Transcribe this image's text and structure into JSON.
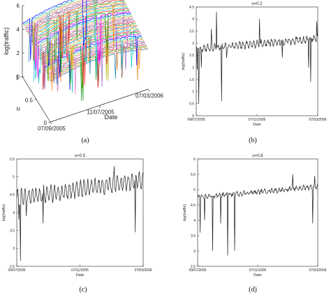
{
  "chart_data": [
    {
      "panel": "(a)",
      "type": "surface",
      "title": "",
      "xlabel": "Date",
      "ylabel": "u",
      "zlabel": "log(traffic)",
      "xticks": [
        "07/09/2005",
        "11/07/2005",
        "07/03/2006"
      ],
      "yticks": [
        "0",
        "0.5",
        "1"
      ],
      "zticks": [
        "0",
        "2",
        "4",
        "6"
      ],
      "zlim": [
        0,
        6
      ],
      "u_range": [
        0,
        1
      ],
      "description_note": "Many coloured quantile curves (one per u in [0,1]) plotted over date",
      "series_count": 40
    },
    {
      "panel": "(b)",
      "type": "line",
      "title": "u=0.2",
      "xlabel": "Date",
      "ylabel": "log(traffic)",
      "xticks": [
        "09/07/2005",
        "07/11/2005",
        "07/03/2006"
      ],
      "ylim": [
        0,
        4.5
      ],
      "yticks": [
        "0",
        "0.5",
        "1",
        "1.5",
        "2",
        "2.5",
        "3",
        "3.5",
        "4",
        "4.5"
      ],
      "n_points": 241,
      "level_start": 2.75,
      "level_end": 3.2,
      "season_amplitude": 0.12,
      "noise": 0.08,
      "spikes": [
        {
          "index": 2,
          "value": 1.9
        },
        {
          "index": 5,
          "value": 0.5
        },
        {
          "index": 10,
          "value": 2.0
        },
        {
          "index": 30,
          "value": 3.6
        },
        {
          "index": 40,
          "value": 4.3
        },
        {
          "index": 50,
          "value": 0.6
        },
        {
          "index": 60,
          "value": 2.4
        },
        {
          "index": 125,
          "value": 4.0
        },
        {
          "index": 170,
          "value": 2.4
        },
        {
          "index": 222,
          "value": 2.0
        },
        {
          "index": 226,
          "value": 1.4
        },
        {
          "index": 238,
          "value": 3.9
        }
      ]
    },
    {
      "panel": "(c)",
      "type": "line",
      "title": "u=0.5",
      "xlabel": "Date",
      "ylabel": "log(traffic)",
      "xticks": [
        "09/07/2005",
        "07/11/2005",
        "07/03/2006"
      ],
      "ylim": [
        2.5,
        5.5
      ],
      "yticks": [
        "2.5",
        "3",
        "3.5",
        "4",
        "4.5",
        "5",
        "5.5"
      ],
      "n_points": 241,
      "level_start": 4.4,
      "level_end": 4.9,
      "season_amplitude": 0.2,
      "noise": 0.08,
      "spikes": [
        {
          "index": 4,
          "value": 3.8
        },
        {
          "index": 7,
          "value": 2.65
        },
        {
          "index": 18,
          "value": 3.9
        },
        {
          "index": 50,
          "value": 3.7
        },
        {
          "index": 170,
          "value": 4.9
        },
        {
          "index": 185,
          "value": 5.3
        },
        {
          "index": 225,
          "value": 3.45
        },
        {
          "index": 230,
          "value": 4.8
        }
      ]
    },
    {
      "panel": "(d)",
      "type": "line",
      "title": "u=0.8",
      "xlabel": "Date",
      "ylabel": "log(traffic)",
      "xticks": [
        "09/07/2005",
        "07/11/2005",
        "07/03/2006"
      ],
      "ylim": [
        2.5,
        6
      ],
      "yticks": [
        "2.5",
        "3",
        "3.5",
        "4",
        "4.5",
        "5",
        "5.5",
        "6"
      ],
      "n_points": 241,
      "level_start": 4.75,
      "level_end": 5.1,
      "season_amplitude": 0.05,
      "noise": 0.05,
      "spikes": [
        {
          "index": 5,
          "value": 3.6
        },
        {
          "index": 14,
          "value": 4.0
        },
        {
          "index": 30,
          "value": 3.0
        },
        {
          "index": 46,
          "value": 3.9
        },
        {
          "index": 60,
          "value": 2.85
        },
        {
          "index": 74,
          "value": 3.0
        },
        {
          "index": 190,
          "value": 5.5
        },
        {
          "index": 230,
          "value": 3.9
        },
        {
          "index": 234,
          "value": 5.45
        }
      ]
    }
  ],
  "captions": [
    "(a)",
    "(b)",
    "(c)",
    "(d)"
  ],
  "colors": {
    "axis": "#222222",
    "line": "#1a1a1a",
    "palette": [
      "#1f77b4",
      "#ff7f0e",
      "#2ca02c",
      "#d62728",
      "#9467bd",
      "#8c564b",
      "#e377c2",
      "#bcbd22",
      "#17becf",
      "#0000ff",
      "#ff00ff",
      "#00aa00",
      "#ff3333",
      "#00cccc",
      "#ffaa00"
    ]
  }
}
